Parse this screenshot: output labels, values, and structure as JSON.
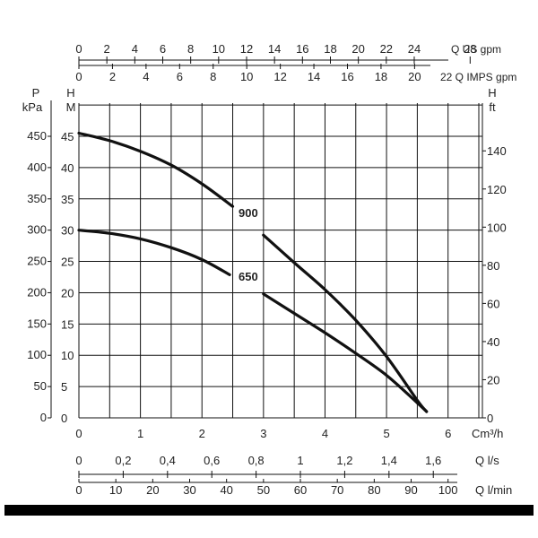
{
  "chart_data": {
    "type": "line",
    "grid": true,
    "x_axis_main": {
      "label": "Cm³/h",
      "ticks": [
        "0",
        "1",
        "2",
        "3",
        "4",
        "5",
        "6"
      ],
      "range": [
        0,
        6
      ]
    },
    "x_axis_ls": {
      "label": "Q l/s",
      "ticks": [
        "0",
        "0,2",
        "0,4",
        "0,6",
        "0,8",
        "1",
        "1,2",
        "1,4",
        "1,6"
      ],
      "values": [
        0,
        0.2,
        0.4,
        0.6,
        0.8,
        1.0,
        1.2,
        1.4,
        1.6
      ]
    },
    "x_axis_lmin": {
      "label": "Q l/min",
      "ticks": [
        "0",
        "10",
        "20",
        "30",
        "40",
        "50",
        "60",
        "70",
        "80",
        "90",
        "100"
      ],
      "values": [
        0,
        10,
        20,
        30,
        40,
        50,
        60,
        70,
        80,
        90,
        100
      ]
    },
    "x_axis_usgpm": {
      "label": "Q US gpm",
      "ticks": [
        "0",
        "2",
        "4",
        "6",
        "8",
        "10",
        "12",
        "14",
        "16",
        "18",
        "20",
        "22",
        "24",
        "28"
      ],
      "values": [
        0,
        2,
        4,
        6,
        8,
        10,
        12,
        14,
        16,
        18,
        20,
        22,
        24,
        28
      ]
    },
    "x_axis_impsgpm": {
      "label": "22 Q IMPS gpm",
      "ticks": [
        "0",
        "2",
        "4",
        "6",
        "8",
        "10",
        "12",
        "14",
        "16",
        "18",
        "20"
      ],
      "values": [
        0,
        2,
        4,
        6,
        8,
        10,
        12,
        14,
        16,
        18,
        20
      ]
    },
    "y_axis_kpa": {
      "label_top": "P",
      "label_unit": "kPa",
      "ticks": [
        "0",
        "50",
        "100",
        "150",
        "200",
        "250",
        "300",
        "350",
        "400",
        "450"
      ],
      "range": [
        0,
        450
      ]
    },
    "y_axis_m": {
      "label_top": "H",
      "label_unit": "M",
      "ticks": [
        "0",
        "5",
        "10",
        "15",
        "20",
        "25",
        "30",
        "35",
        "40",
        "45"
      ],
      "range": [
        0,
        45
      ]
    },
    "y_axis_ft": {
      "label_top": "H",
      "label_unit": "ft",
      "ticks": [
        "0",
        "20",
        "40",
        "60",
        "80",
        "100",
        "120",
        "140"
      ],
      "values": [
        0,
        20,
        40,
        60,
        80,
        100,
        120,
        140
      ]
    },
    "series": [
      {
        "name": "900",
        "x": [
          0,
          0.5,
          1.0,
          1.5,
          2.0,
          2.5,
          3.0,
          3.5,
          4.0,
          4.5,
          5.0,
          5.5,
          5.65
        ],
        "y": [
          45.5,
          44.3,
          42.6,
          40.4,
          37.4,
          33.8,
          29.2,
          24.8,
          20.5,
          15.6,
          9.8,
          2.8,
          1.0
        ]
      },
      {
        "name": "650",
        "x": [
          0,
          0.5,
          1.0,
          1.5,
          2.0,
          2.5,
          3.0,
          3.5,
          4.0,
          4.5,
          5.0,
          5.5,
          5.65
        ],
        "y": [
          30.0,
          29.5,
          28.6,
          27.2,
          25.3,
          22.6,
          19.8,
          16.7,
          13.6,
          10.3,
          6.8,
          2.4,
          1.0
        ]
      }
    ]
  }
}
